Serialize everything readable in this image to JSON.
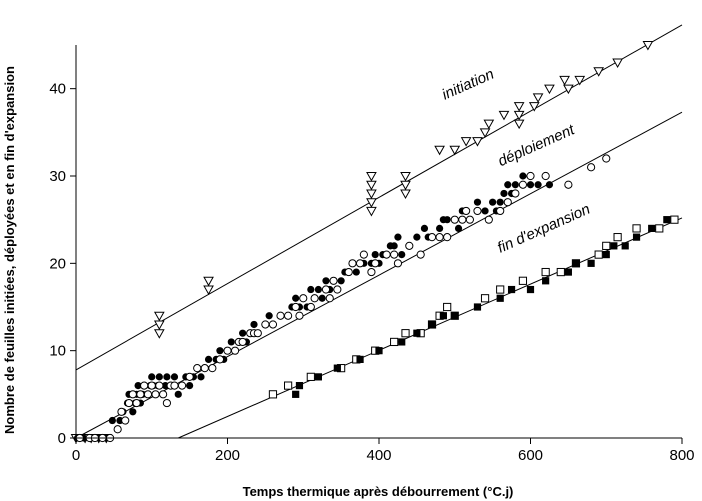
{
  "chart_data": {
    "type": "scatter",
    "xlabel": "Temps thermique après débourrement (°C.j)",
    "ylabel": "Nombre de feuilles initiées, déployées et en fin d'expansion",
    "xlim": [
      0,
      800
    ],
    "ylim": [
      0,
      45
    ],
    "xticks": [
      0,
      200,
      400,
      600,
      800
    ],
    "yticks": [
      0,
      10,
      20,
      30,
      40
    ],
    "grid": false,
    "annotations": [
      {
        "text": "initiation",
        "x": 520,
        "y": 40,
        "angle_deg": -24
      },
      {
        "text": "déploiement",
        "x": 610,
        "y": 33,
        "angle_deg": -24
      },
      {
        "text": "fin d'expansion",
        "x": 620,
        "y": 23.5,
        "angle_deg": -24
      }
    ],
    "lines": [
      {
        "x": [
          0,
          800
        ],
        "y": [
          7.8,
          47.3
        ]
      },
      {
        "x": [
          0,
          800
        ],
        "y": [
          0,
          37.3
        ]
      },
      {
        "x": [
          135,
          800
        ],
        "y": [
          0,
          25.2
        ]
      }
    ],
    "series": [
      {
        "marker": "triangle-down-open",
        "points": [
          [
            0,
            0
          ],
          [
            12,
            0
          ],
          [
            20,
            0
          ],
          [
            30,
            0
          ],
          [
            40,
            0
          ],
          [
            110,
            14
          ],
          [
            110,
            13
          ],
          [
            110,
            12
          ],
          [
            175,
            18
          ],
          [
            175,
            17
          ],
          [
            390,
            30
          ],
          [
            390,
            29
          ],
          [
            390,
            28
          ],
          [
            390,
            27
          ],
          [
            390,
            26
          ],
          [
            435,
            30
          ],
          [
            435,
            29
          ],
          [
            435,
            28
          ],
          [
            480,
            33
          ],
          [
            500,
            33
          ],
          [
            515,
            34
          ],
          [
            530,
            34
          ],
          [
            540,
            35
          ],
          [
            545,
            36
          ],
          [
            565,
            37
          ],
          [
            585,
            38
          ],
          [
            585,
            37
          ],
          [
            585,
            36
          ],
          [
            605,
            38
          ],
          [
            610,
            39
          ],
          [
            625,
            40
          ],
          [
            645,
            41
          ],
          [
            650,
            40
          ],
          [
            665,
            41
          ],
          [
            690,
            42
          ],
          [
            715,
            43
          ],
          [
            755,
            45
          ]
        ]
      },
      {
        "marker": "circle-filled",
        "points": [
          [
            2,
            0
          ],
          [
            10,
            0
          ],
          [
            30,
            0
          ],
          [
            40,
            0
          ],
          [
            48,
            2
          ],
          [
            55,
            1
          ],
          [
            58,
            2
          ],
          [
            62,
            3
          ],
          [
            65,
            2
          ],
          [
            68,
            4
          ],
          [
            70,
            5
          ],
          [
            75,
            3
          ],
          [
            78,
            4
          ],
          [
            80,
            5
          ],
          [
            82,
            6
          ],
          [
            85,
            4
          ],
          [
            88,
            5
          ],
          [
            90,
            6
          ],
          [
            95,
            5
          ],
          [
            98,
            6
          ],
          [
            100,
            7
          ],
          [
            102,
            6
          ],
          [
            105,
            5
          ],
          [
            108,
            6
          ],
          [
            110,
            7
          ],
          [
            115,
            5
          ],
          [
            118,
            6
          ],
          [
            120,
            7
          ],
          [
            125,
            6
          ],
          [
            130,
            7
          ],
          [
            135,
            5
          ],
          [
            140,
            6
          ],
          [
            145,
            7
          ],
          [
            150,
            6
          ],
          [
            155,
            7
          ],
          [
            160,
            8
          ],
          [
            165,
            7
          ],
          [
            170,
            8
          ],
          [
            175,
            9
          ],
          [
            180,
            8
          ],
          [
            185,
            9
          ],
          [
            190,
            10
          ],
          [
            195,
            9
          ],
          [
            200,
            10
          ],
          [
            205,
            11
          ],
          [
            210,
            10
          ],
          [
            215,
            11
          ],
          [
            220,
            12
          ],
          [
            225,
            11
          ],
          [
            230,
            12
          ],
          [
            235,
            13
          ],
          [
            240,
            12
          ],
          [
            250,
            13
          ],
          [
            255,
            14
          ],
          [
            260,
            13
          ],
          [
            270,
            14
          ],
          [
            280,
            14
          ],
          [
            285,
            15
          ],
          [
            290,
            16
          ],
          [
            295,
            15
          ],
          [
            300,
            16
          ],
          [
            305,
            15
          ],
          [
            310,
            17
          ],
          [
            320,
            17
          ],
          [
            325,
            16
          ],
          [
            330,
            18
          ],
          [
            335,
            17
          ],
          [
            340,
            18
          ],
          [
            350,
            18
          ],
          [
            355,
            19
          ],
          [
            360,
            19
          ],
          [
            370,
            19
          ],
          [
            375,
            20
          ],
          [
            380,
            20
          ],
          [
            390,
            20
          ],
          [
            395,
            21
          ],
          [
            400,
            20
          ],
          [
            405,
            21
          ],
          [
            410,
            21
          ],
          [
            415,
            22
          ],
          [
            420,
            22
          ],
          [
            425,
            23
          ],
          [
            430,
            21
          ],
          [
            440,
            22
          ],
          [
            450,
            23
          ],
          [
            460,
            24
          ],
          [
            465,
            23
          ],
          [
            470,
            23
          ],
          [
            480,
            24
          ],
          [
            485,
            25
          ],
          [
            490,
            25
          ],
          [
            500,
            25
          ],
          [
            505,
            24
          ],
          [
            510,
            26
          ],
          [
            520,
            25
          ],
          [
            530,
            27
          ],
          [
            540,
            26
          ],
          [
            550,
            27
          ],
          [
            555,
            26
          ],
          [
            560,
            27
          ],
          [
            565,
            28
          ],
          [
            570,
            29
          ],
          [
            575,
            28
          ],
          [
            580,
            29
          ],
          [
            590,
            30
          ],
          [
            600,
            29
          ],
          [
            610,
            29
          ],
          [
            625,
            29
          ]
        ]
      },
      {
        "marker": "circle-open",
        "points": [
          [
            5,
            0
          ],
          [
            18,
            0
          ],
          [
            25,
            0
          ],
          [
            35,
            0
          ],
          [
            45,
            0
          ],
          [
            55,
            1
          ],
          [
            60,
            3
          ],
          [
            65,
            2
          ],
          [
            70,
            4
          ],
          [
            75,
            5
          ],
          [
            80,
            4
          ],
          [
            85,
            5
          ],
          [
            90,
            6
          ],
          [
            95,
            5
          ],
          [
            100,
            6
          ],
          [
            105,
            5
          ],
          [
            110,
            6
          ],
          [
            115,
            5
          ],
          [
            120,
            4
          ],
          [
            125,
            6
          ],
          [
            130,
            6
          ],
          [
            140,
            6
          ],
          [
            150,
            7
          ],
          [
            160,
            8
          ],
          [
            170,
            8
          ],
          [
            180,
            8
          ],
          [
            190,
            9
          ],
          [
            200,
            10
          ],
          [
            210,
            10
          ],
          [
            215,
            11
          ],
          [
            220,
            11
          ],
          [
            230,
            12
          ],
          [
            235,
            12
          ],
          [
            240,
            12
          ],
          [
            250,
            13
          ],
          [
            260,
            13
          ],
          [
            270,
            14
          ],
          [
            280,
            14
          ],
          [
            290,
            15
          ],
          [
            295,
            14
          ],
          [
            300,
            16
          ],
          [
            310,
            15
          ],
          [
            315,
            16
          ],
          [
            330,
            17
          ],
          [
            335,
            16
          ],
          [
            340,
            18
          ],
          [
            345,
            17
          ],
          [
            360,
            19
          ],
          [
            365,
            20
          ],
          [
            375,
            20
          ],
          [
            380,
            21
          ],
          [
            390,
            19
          ],
          [
            395,
            20
          ],
          [
            410,
            21
          ],
          [
            420,
            21
          ],
          [
            425,
            20
          ],
          [
            440,
            22
          ],
          [
            455,
            21
          ],
          [
            470,
            23
          ],
          [
            480,
            23
          ],
          [
            490,
            23
          ],
          [
            500,
            25
          ],
          [
            510,
            25
          ],
          [
            515,
            26
          ],
          [
            520,
            25
          ],
          [
            530,
            26
          ],
          [
            545,
            25
          ],
          [
            560,
            26
          ],
          [
            570,
            27
          ],
          [
            580,
            28
          ],
          [
            590,
            29
          ],
          [
            600,
            30
          ],
          [
            620,
            30
          ],
          [
            650,
            29
          ],
          [
            680,
            31
          ],
          [
            700,
            32
          ]
        ]
      },
      {
        "marker": "square-open",
        "points": [
          [
            260,
            5
          ],
          [
            280,
            6
          ],
          [
            310,
            7
          ],
          [
            350,
            8
          ],
          [
            370,
            9
          ],
          [
            395,
            10
          ],
          [
            420,
            11
          ],
          [
            435,
            12
          ],
          [
            455,
            12
          ],
          [
            470,
            13
          ],
          [
            480,
            14
          ],
          [
            490,
            15
          ],
          [
            500,
            14
          ],
          [
            540,
            16
          ],
          [
            560,
            17
          ],
          [
            590,
            18
          ],
          [
            620,
            19
          ],
          [
            640,
            19
          ],
          [
            660,
            20
          ],
          [
            690,
            21
          ],
          [
            700,
            22
          ],
          [
            715,
            23
          ],
          [
            740,
            24
          ],
          [
            770,
            24
          ],
          [
            790,
            25
          ]
        ]
      },
      {
        "marker": "square-filled",
        "points": [
          [
            290,
            5
          ],
          [
            295,
            6
          ],
          [
            320,
            7
          ],
          [
            345,
            8
          ],
          [
            375,
            9
          ],
          [
            400,
            10
          ],
          [
            430,
            11
          ],
          [
            450,
            12
          ],
          [
            470,
            13
          ],
          [
            485,
            14
          ],
          [
            500,
            14
          ],
          [
            530,
            15
          ],
          [
            560,
            16
          ],
          [
            575,
            17
          ],
          [
            600,
            17
          ],
          [
            620,
            18
          ],
          [
            650,
            19
          ],
          [
            660,
            20
          ],
          [
            680,
            20
          ],
          [
            700,
            21
          ],
          [
            710,
            22
          ],
          [
            725,
            22
          ],
          [
            740,
            23
          ],
          [
            760,
            24
          ],
          [
            780,
            25
          ]
        ]
      }
    ]
  }
}
